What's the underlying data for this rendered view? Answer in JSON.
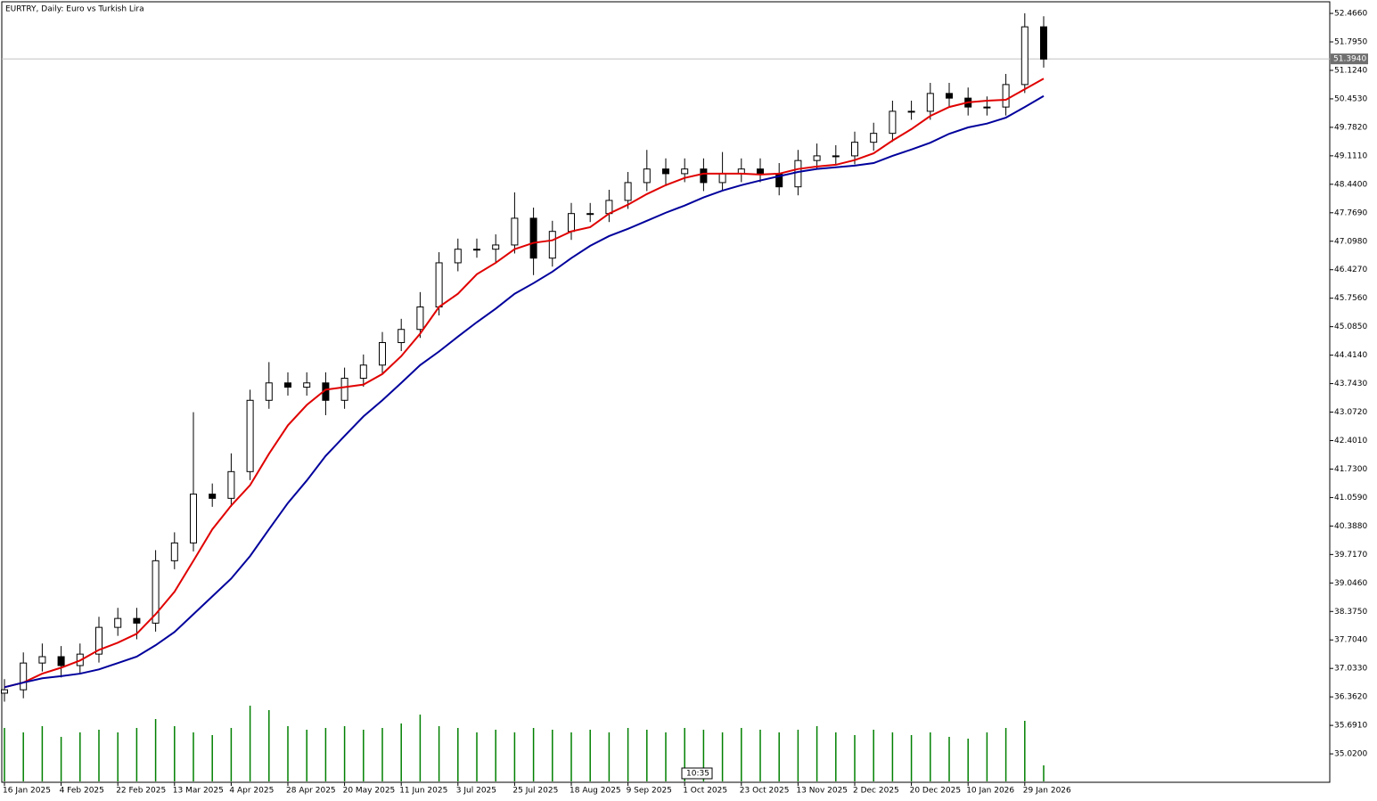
{
  "chart_data": {
    "type": "candlestick",
    "title": "EURTRY, Daily:  Euro vs Turkish Lira",
    "time_label": "10:35",
    "categories": [
      "16 Jan 2025",
      null,
      null,
      "4 Feb 2025",
      null,
      null,
      "22 Feb 2025",
      null,
      null,
      "13 Mar 2025",
      null,
      null,
      "4 Apr 2025",
      null,
      null,
      "28 Apr 2025",
      null,
      null,
      "20 May 2025",
      null,
      null,
      "11 Jun 2025",
      null,
      null,
      "3 Jul 2025",
      null,
      null,
      "25 Jul 2025",
      null,
      null,
      "18 Aug 2025",
      null,
      null,
      "9 Sep 2025",
      null,
      null,
      "1 Oct 2025",
      null,
      null,
      "23 Oct 2025",
      null,
      null,
      "13 Nov 2025",
      null,
      null,
      "2 Dec 2025",
      null,
      null,
      "20 Dec 2025",
      null,
      null,
      "10 Jan 2026",
      null,
      null,
      "29 Jan 2026",
      null
    ],
    "open": [
      36.45,
      36.53,
      37.16,
      37.31,
      37.1,
      37.37,
      38.0,
      38.21,
      38.1,
      39.57,
      39.99,
      41.14,
      41.04,
      41.67,
      43.35,
      43.76,
      43.66,
      43.76,
      43.35,
      43.87,
      44.18,
      44.71,
      45.02,
      45.55,
      46.59,
      46.91,
      46.91,
      47.01,
      47.64,
      46.7,
      47.33,
      47.75,
      47.75,
      48.06,
      48.48,
      48.8,
      48.69,
      48.8,
      48.48,
      48.69,
      48.8,
      48.69,
      48.38,
      49.0,
      49.11,
      49.11,
      49.43,
      49.64,
      50.16,
      50.16,
      50.58,
      50.47,
      50.26,
      50.26,
      50.79,
      52.15
    ],
    "high": [
      36.78,
      37.41,
      37.62,
      37.56,
      37.62,
      38.25,
      38.46,
      38.46,
      39.82,
      40.24,
      43.07,
      41.39,
      42.1,
      43.6,
      44.25,
      44.01,
      44.01,
      44.01,
      44.12,
      44.43,
      44.96,
      45.27,
      45.9,
      46.84,
      47.16,
      47.16,
      47.26,
      48.25,
      47.89,
      47.58,
      48.0,
      48.0,
      48.31,
      48.73,
      49.25,
      49.05,
      49.05,
      49.05,
      49.2,
      49.05,
      49.05,
      48.94,
      49.25,
      49.4,
      49.36,
      49.68,
      49.89,
      50.41,
      50.41,
      50.83,
      50.83,
      50.72,
      50.51,
      51.04,
      52.47,
      52.4
    ],
    "low": [
      36.25,
      36.33,
      36.96,
      36.82,
      36.9,
      37.17,
      37.8,
      37.72,
      37.9,
      39.37,
      39.79,
      40.84,
      40.84,
      41.47,
      43.15,
      43.46,
      43.46,
      43.0,
      43.15,
      43.67,
      43.98,
      44.51,
      44.82,
      45.35,
      46.39,
      46.71,
      46.61,
      46.81,
      46.3,
      46.5,
      47.13,
      47.55,
      47.55,
      47.86,
      48.28,
      48.4,
      48.49,
      48.28,
      48.28,
      48.49,
      48.49,
      48.18,
      48.18,
      48.8,
      48.91,
      48.91,
      49.23,
      49.44,
      49.96,
      49.96,
      50.27,
      50.06,
      50.06,
      50.06,
      50.59,
      51.19
    ],
    "close": [
      36.53,
      37.16,
      37.31,
      37.1,
      37.37,
      38.0,
      38.21,
      38.1,
      39.57,
      39.99,
      41.14,
      41.04,
      41.67,
      43.35,
      43.76,
      43.66,
      43.76,
      43.35,
      43.87,
      44.18,
      44.71,
      45.02,
      45.55,
      46.59,
      46.91,
      46.91,
      47.01,
      47.64,
      46.7,
      47.33,
      47.75,
      47.75,
      48.06,
      48.48,
      48.8,
      48.69,
      48.8,
      48.48,
      48.69,
      48.8,
      48.69,
      48.38,
      49.0,
      49.11,
      49.11,
      49.43,
      49.64,
      50.16,
      50.16,
      50.58,
      50.47,
      50.26,
      50.26,
      50.79,
      52.15,
      51.39
    ],
    "series": [
      {
        "color": "#e00000",
        "values": [
          36.59,
          36.7,
          36.91,
          37.05,
          37.22,
          37.47,
          37.64,
          37.85,
          38.31,
          38.84,
          39.57,
          40.31,
          40.87,
          41.35,
          42.09,
          42.76,
          43.24,
          43.6,
          43.66,
          43.72,
          43.97,
          44.39,
          44.92,
          45.55,
          45.86,
          46.32,
          46.59,
          46.91,
          47.06,
          47.12,
          47.33,
          47.43,
          47.75,
          47.96,
          48.21,
          48.42,
          48.59,
          48.69,
          48.69,
          48.69,
          48.67,
          48.69,
          48.8,
          48.86,
          48.9,
          49.01,
          49.17,
          49.47,
          49.74,
          50.05,
          50.26,
          50.37,
          50.41,
          50.43,
          50.68,
          50.93
        ]
      },
      {
        "color": "#00009c",
        "values": [
          36.59,
          36.7,
          36.8,
          36.85,
          36.91,
          37.01,
          37.16,
          37.31,
          37.58,
          37.89,
          38.31,
          38.73,
          39.15,
          39.68,
          40.31,
          40.93,
          41.46,
          42.04,
          42.51,
          42.97,
          43.35,
          43.76,
          44.18,
          44.5,
          44.85,
          45.19,
          45.51,
          45.86,
          46.11,
          46.38,
          46.7,
          46.99,
          47.22,
          47.39,
          47.58,
          47.77,
          47.94,
          48.13,
          48.29,
          48.42,
          48.53,
          48.63,
          48.73,
          48.8,
          48.84,
          48.88,
          48.94,
          49.11,
          49.26,
          49.42,
          49.63,
          49.78,
          49.87,
          50.01,
          50.26,
          50.52
        ]
      }
    ],
    "volume": {
      "color": "#008000",
      "ylim": [
        0,
        100
      ],
      "values": [
        60,
        55,
        62,
        50,
        55,
        58,
        55,
        60,
        70,
        62,
        55,
        52,
        60,
        85,
        80,
        62,
        58,
        60,
        62,
        58,
        60,
        65,
        75,
        62,
        60,
        55,
        58,
        55,
        60,
        58,
        55,
        58,
        55,
        60,
        58,
        55,
        60,
        58,
        55,
        60,
        58,
        55,
        58,
        62,
        55,
        52,
        58,
        55,
        52,
        55,
        50,
        48,
        55,
        60,
        68,
        18
      ]
    },
    "current_price": {
      "value": 51.394,
      "label": "51.3940"
    },
    "ylim": [
      34.35,
      52.74
    ],
    "yticks": [
      {
        "value": 52.466,
        "label": "52.4660"
      },
      {
        "value": 51.795,
        "label": "51.7950"
      },
      {
        "value": 51.124,
        "label": "51.1240"
      },
      {
        "value": 50.453,
        "label": "50.4530"
      },
      {
        "value": 49.782,
        "label": "49.7820"
      },
      {
        "value": 49.111,
        "label": "49.1110"
      },
      {
        "value": 48.44,
        "label": "48.4400"
      },
      {
        "value": 47.769,
        "label": "47.7690"
      },
      {
        "value": 47.098,
        "label": "47.0980"
      },
      {
        "value": 46.427,
        "label": "46.4270"
      },
      {
        "value": 45.756,
        "label": "45.7560"
      },
      {
        "value": 45.085,
        "label": "45.0850"
      },
      {
        "value": 44.414,
        "label": "44.4140"
      },
      {
        "value": 43.743,
        "label": "43.7430"
      },
      {
        "value": 43.072,
        "label": "43.0720"
      },
      {
        "value": 42.401,
        "label": "42.4010"
      },
      {
        "value": 41.73,
        "label": "41.7300"
      },
      {
        "value": 41.059,
        "label": "41.0590"
      },
      {
        "value": 40.388,
        "label": "40.3880"
      },
      {
        "value": 39.717,
        "label": "39.7170"
      },
      {
        "value": 39.046,
        "label": "39.0460"
      },
      {
        "value": 38.375,
        "label": "38.3750"
      },
      {
        "value": 37.704,
        "label": "37.7040"
      },
      {
        "value": 37.033,
        "label": "37.0330"
      },
      {
        "value": 36.362,
        "label": "36.3620"
      },
      {
        "value": 35.691,
        "label": "35.6910"
      },
      {
        "value": 35.02,
        "label": "35.0200"
      }
    ]
  }
}
